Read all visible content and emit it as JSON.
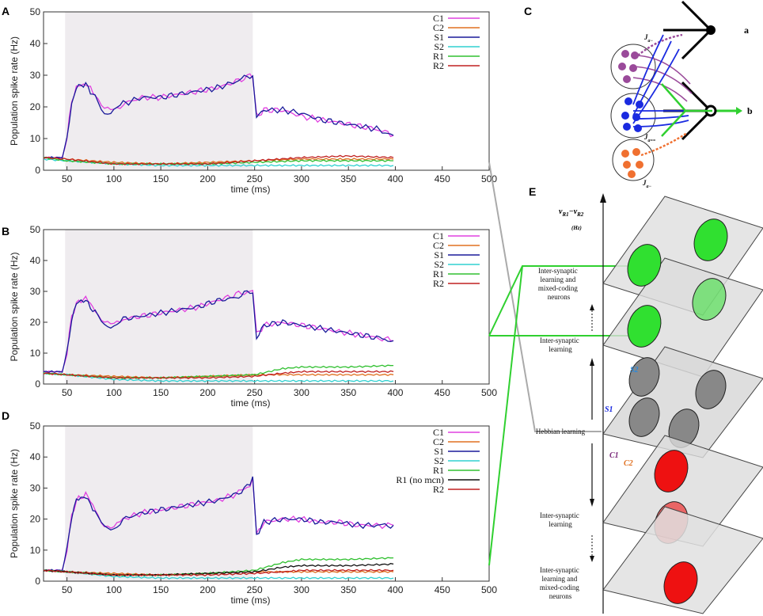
{
  "panel_letters": {
    "a": "A",
    "b": "B",
    "c": "C",
    "d": "D",
    "e": "E"
  },
  "colors": {
    "C1": "#e040e0",
    "C2": "#e07020",
    "S1": "#1a1a9a",
    "S2": "#30d0d0",
    "R1": "#30c030",
    "R1nm": "#111111",
    "R2": "#c02020",
    "shade": "#efecef",
    "purple": "#9a4a9a",
    "blue": "#1a2ae0",
    "green": "#30d030",
    "orange": "#f07030",
    "greyPlane": "#dcdcdc",
    "greyEllipse": "#888888",
    "red": "#ee1111"
  },
  "chart_data": [
    {
      "id": "A",
      "type": "line",
      "ylabel": "Population spike rate (Hz)",
      "xlabel": "time (ms)",
      "xlim": [
        25,
        500
      ],
      "ylim": [
        0,
        50
      ],
      "xticks": [
        50,
        100,
        150,
        200,
        250,
        300,
        350,
        400,
        450,
        500
      ],
      "yticks": [
        0,
        10,
        20,
        30,
        40,
        50
      ],
      "shade": [
        48,
        248
      ],
      "legend": [
        "C1",
        "C2",
        "S1",
        "S2",
        "R1",
        "R2"
      ],
      "series": [
        {
          "name": "C1",
          "x": [
            25,
            45,
            50,
            55,
            60,
            65,
            70,
            75,
            80,
            90,
            100,
            110,
            130,
            150,
            170,
            190,
            210,
            230,
            245,
            248,
            252,
            260,
            280,
            300,
            320,
            340,
            360,
            380,
            398
          ],
          "y": [
            4,
            4,
            10,
            22,
            26,
            27,
            27,
            26,
            24,
            19,
            19,
            21,
            23,
            23,
            24,
            25,
            26,
            28,
            30,
            29,
            17,
            19,
            19,
            17,
            16,
            15,
            14,
            13,
            11
          ]
        },
        {
          "name": "S1",
          "x": [
            25,
            45,
            50,
            55,
            60,
            65,
            70,
            75,
            80,
            90,
            100,
            110,
            130,
            150,
            170,
            190,
            210,
            230,
            245,
            248,
            252,
            260,
            280,
            300,
            320,
            340,
            360,
            380,
            398
          ],
          "y": [
            4,
            4,
            10,
            21,
            26,
            27,
            27,
            25,
            23,
            18,
            19,
            21,
            23,
            23,
            24,
            25,
            26,
            28,
            30,
            30,
            17,
            19,
            19,
            18,
            16,
            15,
            14,
            13,
            11
          ]
        },
        {
          "name": "C2",
          "x": [
            25,
            50,
            100,
            150,
            200,
            250,
            300,
            350,
            398
          ],
          "y": [
            4,
            3.5,
            2.5,
            2,
            2.5,
            3,
            3.5,
            3.5,
            3.5
          ]
        },
        {
          "name": "S2",
          "x": [
            25,
            50,
            100,
            150,
            200,
            250,
            300,
            350,
            398
          ],
          "y": [
            3.5,
            3,
            2,
            1.5,
            1.5,
            1.5,
            1.5,
            1.5,
            1.5
          ]
        },
        {
          "name": "R1",
          "x": [
            25,
            50,
            100,
            150,
            200,
            250,
            300,
            350,
            398
          ],
          "y": [
            4,
            3,
            2,
            2,
            2,
            2.5,
            3,
            3,
            3
          ]
        },
        {
          "name": "R2",
          "x": [
            25,
            50,
            100,
            150,
            200,
            250,
            300,
            350,
            398
          ],
          "y": [
            4,
            3.5,
            2,
            2,
            2,
            3,
            4,
            4.5,
            4
          ]
        }
      ]
    },
    {
      "id": "B",
      "type": "line",
      "ylabel": "Population spike rate (Hz)",
      "xlabel": "time (ms)",
      "xlim": [
        25,
        500
      ],
      "ylim": [
        0,
        50
      ],
      "xticks": [
        50,
        100,
        150,
        200,
        250,
        300,
        350,
        400,
        450,
        500
      ],
      "yticks": [
        0,
        10,
        20,
        30,
        40,
        50
      ],
      "shade": [
        48,
        248
      ],
      "legend": [
        "C1",
        "C2",
        "S1",
        "S2",
        "R1",
        "R2"
      ],
      "series": [
        {
          "name": "C1",
          "x": [
            25,
            45,
            50,
            55,
            60,
            65,
            70,
            75,
            80,
            90,
            100,
            110,
            130,
            150,
            170,
            190,
            210,
            230,
            245,
            248,
            252,
            260,
            280,
            300,
            320,
            340,
            360,
            380,
            398
          ],
          "y": [
            4,
            4,
            10,
            22,
            26,
            27,
            28,
            26,
            24,
            20,
            19,
            21,
            22,
            23,
            24,
            25,
            27,
            29,
            30,
            30,
            16,
            19,
            20,
            19,
            18,
            17,
            16,
            15,
            14
          ]
        },
        {
          "name": "S1",
          "x": [
            25,
            45,
            50,
            55,
            60,
            65,
            70,
            75,
            80,
            90,
            100,
            110,
            130,
            150,
            170,
            190,
            210,
            230,
            245,
            248,
            252,
            260,
            280,
            300,
            320,
            340,
            360,
            380,
            398
          ],
          "y": [
            4,
            4,
            10,
            21,
            26,
            27,
            27,
            25,
            23,
            19,
            19,
            21,
            22,
            23,
            24,
            25,
            27,
            28,
            30,
            30,
            15,
            19,
            20,
            19,
            18,
            17,
            16,
            15,
            14
          ]
        },
        {
          "name": "C2",
          "x": [
            25,
            50,
            100,
            150,
            200,
            250,
            300,
            350,
            398
          ],
          "y": [
            3.5,
            3,
            2.5,
            2,
            2.5,
            3,
            3,
            3,
            3
          ]
        },
        {
          "name": "S2",
          "x": [
            25,
            50,
            100,
            150,
            200,
            250,
            300,
            350,
            398
          ],
          "y": [
            3.5,
            3,
            1.5,
            1,
            1,
            1,
            1,
            1,
            1
          ]
        },
        {
          "name": "R1",
          "x": [
            25,
            50,
            100,
            150,
            200,
            250,
            280,
            300,
            350,
            398
          ],
          "y": [
            3.5,
            3,
            2,
            2,
            2.5,
            3,
            5,
            5.5,
            5.5,
            6
          ]
        },
        {
          "name": "R2",
          "x": [
            25,
            50,
            100,
            150,
            200,
            250,
            280,
            300,
            350,
            398
          ],
          "y": [
            3.5,
            3,
            2,
            2,
            2,
            2.5,
            3.5,
            4,
            4,
            4
          ]
        }
      ]
    },
    {
      "id": "D",
      "type": "line",
      "ylabel": "Population spike rate (Hz)",
      "xlabel": "time (ms)",
      "xlim": [
        25,
        500
      ],
      "ylim": [
        0,
        50
      ],
      "xticks": [
        50,
        100,
        150,
        200,
        250,
        300,
        350,
        400,
        450,
        500
      ],
      "yticks": [
        0,
        10,
        20,
        30,
        40,
        50
      ],
      "shade": [
        48,
        248
      ],
      "legend": [
        "C1",
        "C2",
        "S1",
        "S2",
        "R1",
        "R1 (no mcn)",
        "R2"
      ],
      "series": [
        {
          "name": "C1",
          "x": [
            25,
            45,
            50,
            55,
            60,
            65,
            70,
            75,
            80,
            90,
            100,
            110,
            130,
            150,
            170,
            190,
            210,
            230,
            245,
            248,
            252,
            260,
            280,
            300,
            320,
            340,
            360,
            380,
            398
          ],
          "y": [
            3.5,
            3.5,
            10,
            21,
            26,
            27,
            28,
            26,
            23,
            18,
            17,
            20,
            22,
            23,
            24,
            25,
            26,
            28,
            31,
            33,
            15,
            19,
            20,
            20,
            19,
            19,
            18,
            18,
            18
          ]
        },
        {
          "name": "S1",
          "x": [
            25,
            45,
            50,
            55,
            60,
            65,
            70,
            75,
            80,
            90,
            100,
            110,
            130,
            150,
            170,
            190,
            210,
            230,
            245,
            248,
            252,
            260,
            280,
            300,
            320,
            340,
            360,
            380,
            398
          ],
          "y": [
            3.5,
            3.5,
            10,
            21,
            26,
            27,
            27,
            25,
            22,
            17,
            17,
            20,
            22,
            23,
            24,
            25,
            26,
            28,
            31,
            34,
            15,
            19,
            20,
            20,
            19,
            19,
            18,
            18,
            18
          ]
        },
        {
          "name": "C2",
          "x": [
            25,
            50,
            100,
            150,
            200,
            250,
            300,
            350,
            398
          ],
          "y": [
            3.5,
            3,
            2.5,
            2,
            2.5,
            3,
            3,
            3,
            3
          ]
        },
        {
          "name": "S2",
          "x": [
            25,
            50,
            100,
            150,
            200,
            250,
            300,
            350,
            398
          ],
          "y": [
            3.5,
            3,
            1.5,
            1,
            1,
            1,
            1,
            1,
            1
          ]
        },
        {
          "name": "R1",
          "x": [
            25,
            50,
            100,
            150,
            200,
            250,
            280,
            300,
            350,
            398
          ],
          "y": [
            3.5,
            3,
            2,
            2,
            2.5,
            3.5,
            6,
            7,
            7,
            7.5
          ]
        },
        {
          "name": "R1 (no mcn)",
          "x": [
            25,
            50,
            100,
            150,
            200,
            250,
            280,
            300,
            350,
            398
          ],
          "y": [
            3.5,
            3,
            2,
            2,
            2.5,
            3,
            4.5,
            5,
            5,
            5.5
          ]
        },
        {
          "name": "R2",
          "x": [
            25,
            50,
            100,
            150,
            200,
            250,
            280,
            300,
            350,
            398
          ],
          "y": [
            3.5,
            3,
            2,
            2,
            2,
            2.5,
            3,
            3.5,
            3.5,
            3.5
          ]
        }
      ]
    }
  ],
  "panel_c": {
    "label_a": "a",
    "label_b": "b",
    "j1": "J",
    "j1_sub": "a−",
    "j2": "J",
    "j2_sub": "a==",
    "j3": "J",
    "j3_sub": "a−"
  },
  "panel_e": {
    "axis_label": "v",
    "axis_label_sub1": "R1",
    "axis_minus": "−",
    "axis_label2": "v",
    "axis_label_sub2": "R2",
    "axis_unit": "(Hz)",
    "labels": {
      "inter_mixed_top": [
        "Inter-synaptic",
        "learning and",
        "mixed-coding",
        "neurons"
      ],
      "inter_top": [
        "Inter-synaptic",
        "learning"
      ],
      "hebbian": "Hebbian learning",
      "inter_bottom": [
        "Inter-synaptic",
        "learning"
      ],
      "inter_mixed_bottom": [
        "Inter-synaptic",
        "learning and",
        "mixed-coding",
        "neurons"
      ]
    },
    "plane_labels": {
      "s2": "S2",
      "s1": "S1",
      "c1": "C1",
      "c2": "C2"
    }
  }
}
